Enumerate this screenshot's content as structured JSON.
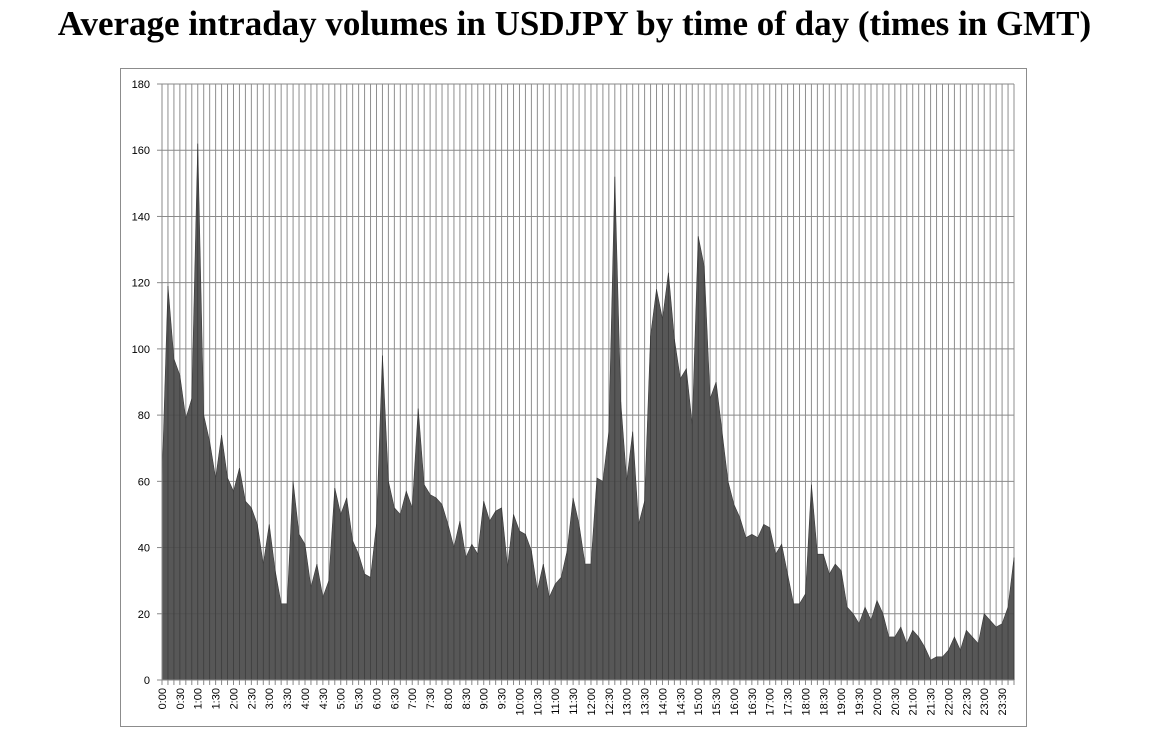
{
  "chart_data": {
    "type": "area",
    "title": "Average intraday volumes in USDJPY by time of day (times in GMT)",
    "xlabel": "",
    "ylabel": "",
    "ylim": [
      0,
      180
    ],
    "y_ticks": [
      "0",
      "20",
      "40",
      "60",
      "80",
      "100",
      "120",
      "140",
      "160",
      "180"
    ],
    "x_tick_labels": [
      "0:00",
      "0:30",
      "1:00",
      "1:30",
      "2:00",
      "2:30",
      "3:00",
      "3:30",
      "4:00",
      "4:30",
      "5:00",
      "5:30",
      "6:00",
      "6:30",
      "7:00",
      "7:30",
      "8:00",
      "8:30",
      "9:00",
      "9:30",
      "10:00",
      "10:30",
      "11:00",
      "11:30",
      "12:00",
      "12:30",
      "13:00",
      "13:30",
      "14:00",
      "14:30",
      "15:00",
      "15:30",
      "16:00",
      "16:30",
      "17:00",
      "17:30",
      "18:00",
      "18:30",
      "19:00",
      "19:30",
      "20:00",
      "20:30",
      "21:00",
      "21:30",
      "22:00",
      "22:30",
      "23:00",
      "23:30"
    ],
    "x_interval_minutes": 10,
    "grid": {
      "horizontal": true,
      "vertical": true
    },
    "legend": "none",
    "series": [
      {
        "color": "#4a4a4a",
        "values": [
          60,
          119,
          97,
          92,
          79,
          85,
          162,
          80,
          72,
          61,
          74,
          61,
          57,
          64,
          54,
          52,
          47,
          35,
          47,
          33,
          23,
          23,
          60,
          44,
          41,
          28,
          35,
          25,
          30,
          58,
          50,
          55,
          42,
          38,
          32,
          31,
          47,
          98,
          60,
          52,
          50,
          57,
          52,
          82,
          59,
          56,
          55,
          53,
          47,
          40,
          48,
          37,
          41,
          38,
          54,
          48,
          51,
          52,
          34,
          50,
          45,
          44,
          39,
          27,
          35,
          25,
          29,
          31,
          39,
          55,
          47,
          35,
          35,
          61,
          60,
          75,
          152,
          84,
          60,
          75,
          47,
          54,
          104,
          118,
          109,
          123,
          103,
          91,
          94,
          77,
          134,
          125,
          85,
          90,
          75,
          60,
          53,
          49,
          43,
          44,
          43,
          47,
          46,
          38,
          41,
          32,
          23,
          23,
          26,
          59,
          38,
          38,
          32,
          35,
          33,
          22,
          20,
          17,
          22,
          18,
          24,
          20,
          13,
          13,
          16,
          11,
          15,
          13,
          10,
          6,
          7,
          7,
          9,
          13,
          9,
          15,
          13,
          11,
          20,
          18,
          16,
          17,
          22,
          37
        ]
      }
    ]
  }
}
